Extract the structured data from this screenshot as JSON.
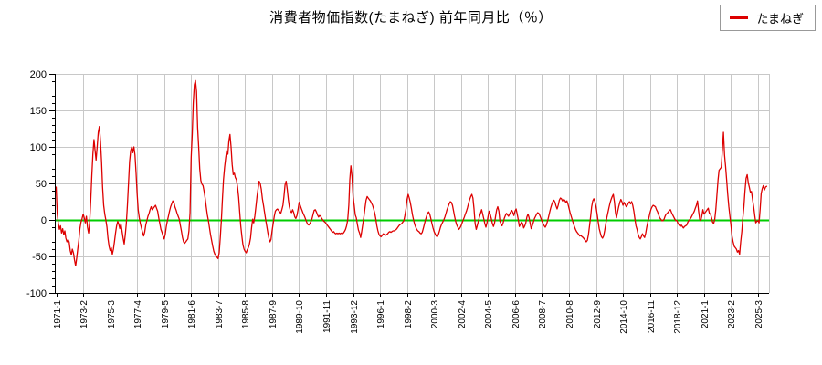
{
  "title": "消費者物価指数(たまねぎ) 前年同月比（％）",
  "legend": {
    "label": "たまねぎ"
  },
  "colors": {
    "series": "#dd0000",
    "zero_line": "#00cc00",
    "grid": "#c8c8c8",
    "axis": "#000000",
    "background": "#ffffff",
    "legend_border": "#999999"
  },
  "chart_data": {
    "type": "line",
    "title": "消費者物価指数(たまねぎ) 前年同月比（％）",
    "series_name": "たまねぎ",
    "x_start": "1971-1",
    "x_end": "2025-11",
    "x_tick_interval_months": 25,
    "x_tick_labels": [
      "1971-1",
      "1973-2",
      "1975-3",
      "1977-4",
      "1979-5",
      "1981-6",
      "1983-7",
      "1985-8",
      "1987-9",
      "1989-10",
      "1991-11",
      "1993-12",
      "1996-1",
      "1998-2",
      "2000-3",
      "2002-4",
      "2004-5",
      "2006-6",
      "2008-7",
      "2010-8",
      "2012-9",
      "2014-10",
      "2016-11",
      "2018-12",
      "2021-1",
      "2023-2",
      "2025-3"
    ],
    "ylim": [
      -100,
      200
    ],
    "y_ticks": [
      200,
      150,
      100,
      50,
      0,
      -50,
      -100
    ],
    "y_minor_tick_step": 10,
    "grid": true,
    "zero_line": true,
    "legend_position": "top-right",
    "values_monthly": [
      45,
      8,
      -5,
      -13,
      -8,
      -18,
      -12,
      -20,
      -15,
      -25,
      -30,
      -27,
      -30,
      -42,
      -48,
      -40,
      -45,
      -55,
      -63,
      -52,
      -40,
      -28,
      -12,
      -3,
      2,
      8,
      3,
      -4,
      5,
      -10,
      -18,
      -5,
      25,
      60,
      90,
      110,
      95,
      82,
      100,
      120,
      128,
      108,
      80,
      45,
      20,
      8,
      0,
      -10,
      -25,
      -36,
      -42,
      -38,
      -47,
      -40,
      -30,
      -18,
      -8,
      -2,
      -6,
      -12,
      -5,
      -15,
      -25,
      -33,
      -20,
      -5,
      20,
      50,
      80,
      95,
      100,
      92,
      100,
      89,
      64,
      35,
      14,
      3,
      -5,
      -11,
      -17,
      -22,
      -17,
      -7,
      -1,
      5,
      9,
      14,
      18,
      14,
      16,
      18,
      20,
      16,
      12,
      3,
      -5,
      -13,
      -17,
      -22,
      -26,
      -20,
      -9,
      -1,
      5,
      12,
      18,
      22,
      26,
      24,
      18,
      14,
      9,
      5,
      1,
      -7,
      -15,
      -24,
      -30,
      -32,
      -30,
      -28,
      -26,
      -15,
      10,
      85,
      118,
      160,
      185,
      191,
      176,
      126,
      101,
      70,
      54,
      49,
      47,
      39,
      30,
      18,
      7,
      -1,
      -11,
      -20,
      -28,
      -36,
      -43,
      -47,
      -50,
      -51,
      -53,
      -45,
      -24,
      0,
      30,
      55,
      72,
      85,
      95,
      90,
      108,
      117,
      100,
      76,
      62,
      64,
      58,
      55,
      45,
      31,
      10,
      -8,
      -22,
      -34,
      -40,
      -43,
      -45,
      -41,
      -38,
      -33,
      -25,
      -10,
      1,
      -4,
      5,
      18,
      32,
      43,
      53,
      50,
      42,
      29,
      20,
      10,
      1,
      -8,
      -17,
      -25,
      -30,
      -27,
      -15,
      -5,
      5,
      12,
      14,
      15,
      13,
      11,
      9,
      14,
      20,
      32,
      48,
      53,
      42,
      28,
      18,
      12,
      10,
      14,
      10,
      4,
      2,
      6,
      14,
      24,
      20,
      16,
      12,
      8,
      5,
      1,
      -3,
      -6,
      -7,
      -5,
      -2,
      2,
      8,
      13,
      14,
      11,
      7,
      4,
      6,
      5,
      2,
      0,
      -2,
      -3,
      -5,
      -7,
      -9,
      -11,
      -13,
      -15,
      -17,
      -16,
      -18,
      -19,
      -18,
      -19,
      -18,
      -19,
      -18,
      -19,
      -18,
      -16,
      -13,
      -8,
      0,
      20,
      55,
      74,
      60,
      32,
      20,
      7,
      3,
      -6,
      -14,
      -18,
      -24,
      -16,
      -6,
      4,
      16,
      27,
      32,
      30,
      28,
      26,
      23,
      20,
      15,
      10,
      2,
      -8,
      -15,
      -20,
      -22,
      -23,
      -21,
      -19,
      -20,
      -21,
      -20,
      -19,
      -17,
      -16,
      -17,
      -16,
      -15,
      -15,
      -14,
      -13,
      -11,
      -9,
      -7,
      -6,
      -5,
      -3,
      -1,
      6,
      15,
      28,
      35,
      30,
      24,
      16,
      7,
      0,
      -6,
      -10,
      -13,
      -15,
      -16,
      -18,
      -19,
      -17,
      -12,
      -6,
      0,
      5,
      9,
      11,
      8,
      2,
      -5,
      -11,
      -16,
      -19,
      -22,
      -23,
      -20,
      -15,
      -10,
      -6,
      -3,
      0,
      4,
      9,
      14,
      18,
      22,
      25,
      24,
      20,
      13,
      5,
      -2,
      -7,
      -10,
      -13,
      -11,
      -8,
      -4,
      0,
      4,
      8,
      12,
      17,
      23,
      28,
      32,
      35,
      30,
      15,
      -5,
      -13,
      -8,
      -2,
      4,
      9,
      14,
      8,
      2,
      -5,
      -10,
      -4,
      5,
      12,
      8,
      2,
      -5,
      -9,
      -4,
      5,
      14,
      18,
      12,
      -2,
      -5,
      -8,
      -4,
      2,
      6,
      9,
      7,
      5,
      8,
      11,
      13,
      10,
      6,
      12,
      15,
      8,
      0,
      -9,
      -6,
      -3,
      -5,
      -11,
      -8,
      -4,
      4,
      8,
      3,
      -5,
      -12,
      -8,
      -3,
      2,
      5,
      8,
      10,
      9,
      6,
      2,
      -2,
      -5,
      -8,
      -10,
      -7,
      -2,
      4,
      10,
      16,
      21,
      25,
      27,
      24,
      19,
      15,
      20,
      27,
      30,
      29,
      26,
      28,
      27,
      24,
      26,
      22,
      16,
      10,
      5,
      0,
      -5,
      -9,
      -13,
      -16,
      -18,
      -20,
      -22,
      -21,
      -23,
      -24,
      -26,
      -28,
      -30,
      -28,
      -20,
      -8,
      5,
      18,
      26,
      29,
      25,
      18,
      8,
      -2,
      -12,
      -18,
      -23,
      -25,
      -22,
      -15,
      -6,
      3,
      10,
      17,
      23,
      28,
      32,
      35,
      25,
      10,
      3,
      11,
      18,
      24,
      28,
      25,
      20,
      24,
      21,
      18,
      20,
      23,
      25,
      22,
      25,
      20,
      12,
      2,
      -8,
      -13,
      -20,
      -24,
      -26,
      -23,
      -19,
      -22,
      -24,
      -18,
      -10,
      -3,
      3,
      10,
      15,
      18,
      20,
      19,
      18,
      14,
      11,
      7,
      3,
      1,
      -1,
      -1,
      1,
      5,
      8,
      9,
      11,
      13,
      14,
      10,
      7,
      4,
      1,
      -1,
      -1,
      -5,
      -7,
      -9,
      -7,
      -9,
      -11,
      -9,
      -8,
      -7,
      -3,
      -1,
      1,
      3,
      6,
      9,
      12,
      16,
      20,
      26,
      12,
      1,
      -1,
      5,
      14,
      8,
      10,
      12,
      14,
      16,
      9,
      8,
      3,
      -3,
      -5,
      1,
      15,
      35,
      55,
      68,
      70,
      72,
      95,
      120,
      89,
      74,
      55,
      35,
      18,
      5,
      -7,
      -22,
      -30,
      -36,
      -38,
      -40,
      -44,
      -42,
      -47,
      -30,
      -16,
      2,
      18,
      40,
      57,
      62,
      51,
      45,
      38,
      39,
      28,
      18,
      6,
      -4,
      -2,
      -1,
      -4,
      15,
      36,
      43,
      47,
      41,
      45,
      46
    ]
  }
}
